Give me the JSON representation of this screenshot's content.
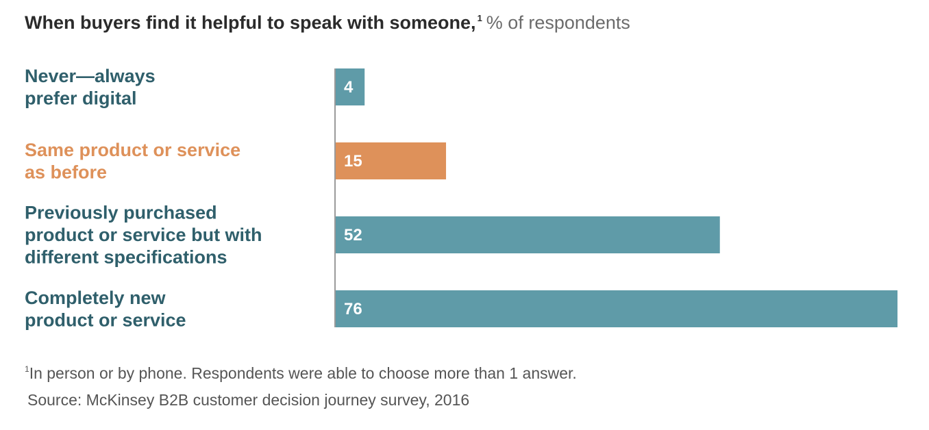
{
  "title": {
    "main": "When buyers find it helpful to speak with someone,",
    "marker": "1",
    "unit": "% of respondents"
  },
  "chart_data": {
    "type": "bar",
    "orientation": "horizontal",
    "title": "When buyers find it helpful to speak with someone,",
    "unit": "% of respondents",
    "categories": [
      [
        "Never—always",
        "prefer digital"
      ],
      [
        "Same product or service",
        "as before"
      ],
      [
        "Previously purchased",
        "product or service but with",
        "different specifications"
      ],
      [
        "Completely new",
        "product or service"
      ]
    ],
    "values": [
      4,
      15,
      52,
      76
    ],
    "colors": [
      "#5f9ba8",
      "#de915a",
      "#5f9ba8",
      "#5f9ba8"
    ],
    "label_colors": [
      "#2f5f6b",
      "#de915a",
      "#2f5f6b",
      "#2f5f6b"
    ],
    "xlim": [
      0,
      76
    ],
    "grid": false,
    "legend": "none"
  },
  "footnote": {
    "marker": "1",
    "text": "In person or by phone. Respondents were able to choose more than 1 answer."
  },
  "source": "Source: McKinsey B2B customer decision journey survey, 2016"
}
